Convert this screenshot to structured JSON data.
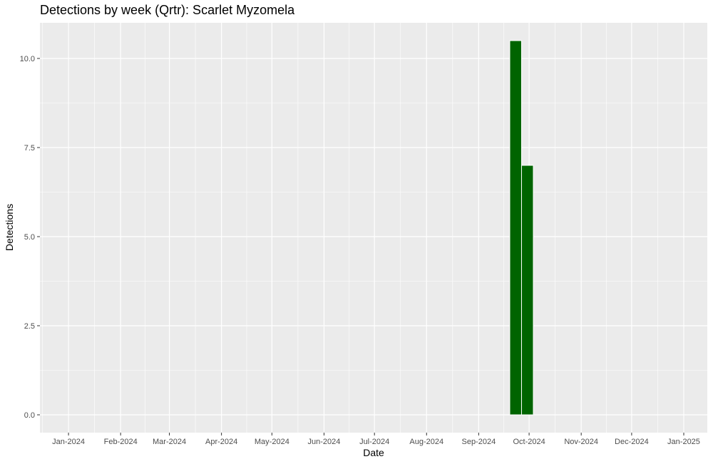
{
  "chart_data": {
    "type": "bar",
    "title": "Detections by week (Qrtr): Scarlet Myzomela",
    "xlabel": "Date",
    "ylabel": "Detections",
    "x_ticks": [
      "Jan-2024",
      "Feb-2024",
      "Mar-2024",
      "Apr-2024",
      "May-2024",
      "Jun-2024",
      "Jul-2024",
      "Aug-2024",
      "Sep-2024",
      "Oct-2024",
      "Nov-2024",
      "Dec-2024",
      "Jan-2025"
    ],
    "xlim": [
      "2023-12-15",
      "2025-01-15"
    ],
    "y_ticks": [
      "0.0",
      "2.5",
      "5.0",
      "7.5",
      "10.0"
    ],
    "ylim": [
      -0.5,
      11
    ],
    "bar_color": "#006400",
    "panel_color": "#ebebeb",
    "grid": true,
    "series": [
      {
        "values": [
          {
            "week": "2024-09-23",
            "value": 10.5
          },
          {
            "week": "2024-09-30",
            "value": 7
          }
        ]
      }
    ]
  }
}
